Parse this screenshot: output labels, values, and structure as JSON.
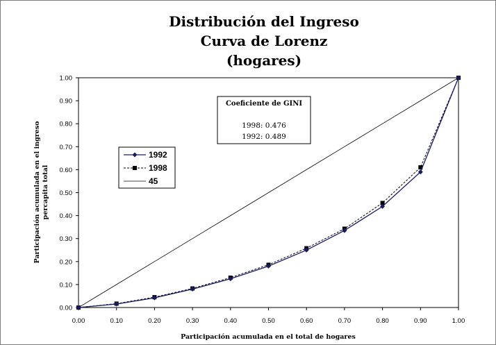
{
  "chart_data": {
    "type": "line",
    "title": [
      "Distribución del Ingreso",
      "Curva de Lorenz",
      "(hogares)"
    ],
    "xlabel": "Participación acumulada en el total de hogares",
    "ylabel": [
      "Participación acumulada en el ingreso",
      "percapita total"
    ],
    "xlim": [
      0,
      1
    ],
    "ylim": [
      0,
      1
    ],
    "x": [
      0.0,
      0.1,
      0.2,
      0.3,
      0.4,
      0.5,
      0.6,
      0.7,
      0.8,
      0.9,
      1.0
    ],
    "x_ticks": [
      "0.00",
      "0.10",
      "0.20",
      "0.30",
      "0.40",
      "0.50",
      "0.60",
      "0.70",
      "0.80",
      "0.90",
      "1.00"
    ],
    "y_ticks": [
      "0.00",
      "0.10",
      "0.20",
      "0.30",
      "0.40",
      "0.50",
      "0.60",
      "0.70",
      "0.80",
      "0.90",
      "1.00"
    ],
    "series": [
      {
        "name": "1992",
        "values": [
          0.0,
          0.015,
          0.042,
          0.08,
          0.125,
          0.18,
          0.25,
          0.335,
          0.44,
          0.59,
          1.0
        ],
        "style": "solid",
        "marker": "diamond",
        "color": "#1a1a5e"
      },
      {
        "name": "1998",
        "values": [
          0.0,
          0.017,
          0.045,
          0.083,
          0.13,
          0.186,
          0.258,
          0.343,
          0.455,
          0.61,
          1.0
        ],
        "style": "dashed",
        "marker": "square",
        "color": "#000000"
      },
      {
        "name": "45",
        "values": [
          0.0,
          0.1,
          0.2,
          0.3,
          0.4,
          0.5,
          0.6,
          0.7,
          0.8,
          0.9,
          1.0
        ],
        "style": "solid-thin",
        "marker": "none",
        "color": "#000000"
      }
    ],
    "annotation": {
      "title": "Coeficiente de GINI",
      "lines": [
        "1998:  0.476",
        "1992: 0.489"
      ]
    },
    "legend_position": "left-middle",
    "grid": false
  }
}
